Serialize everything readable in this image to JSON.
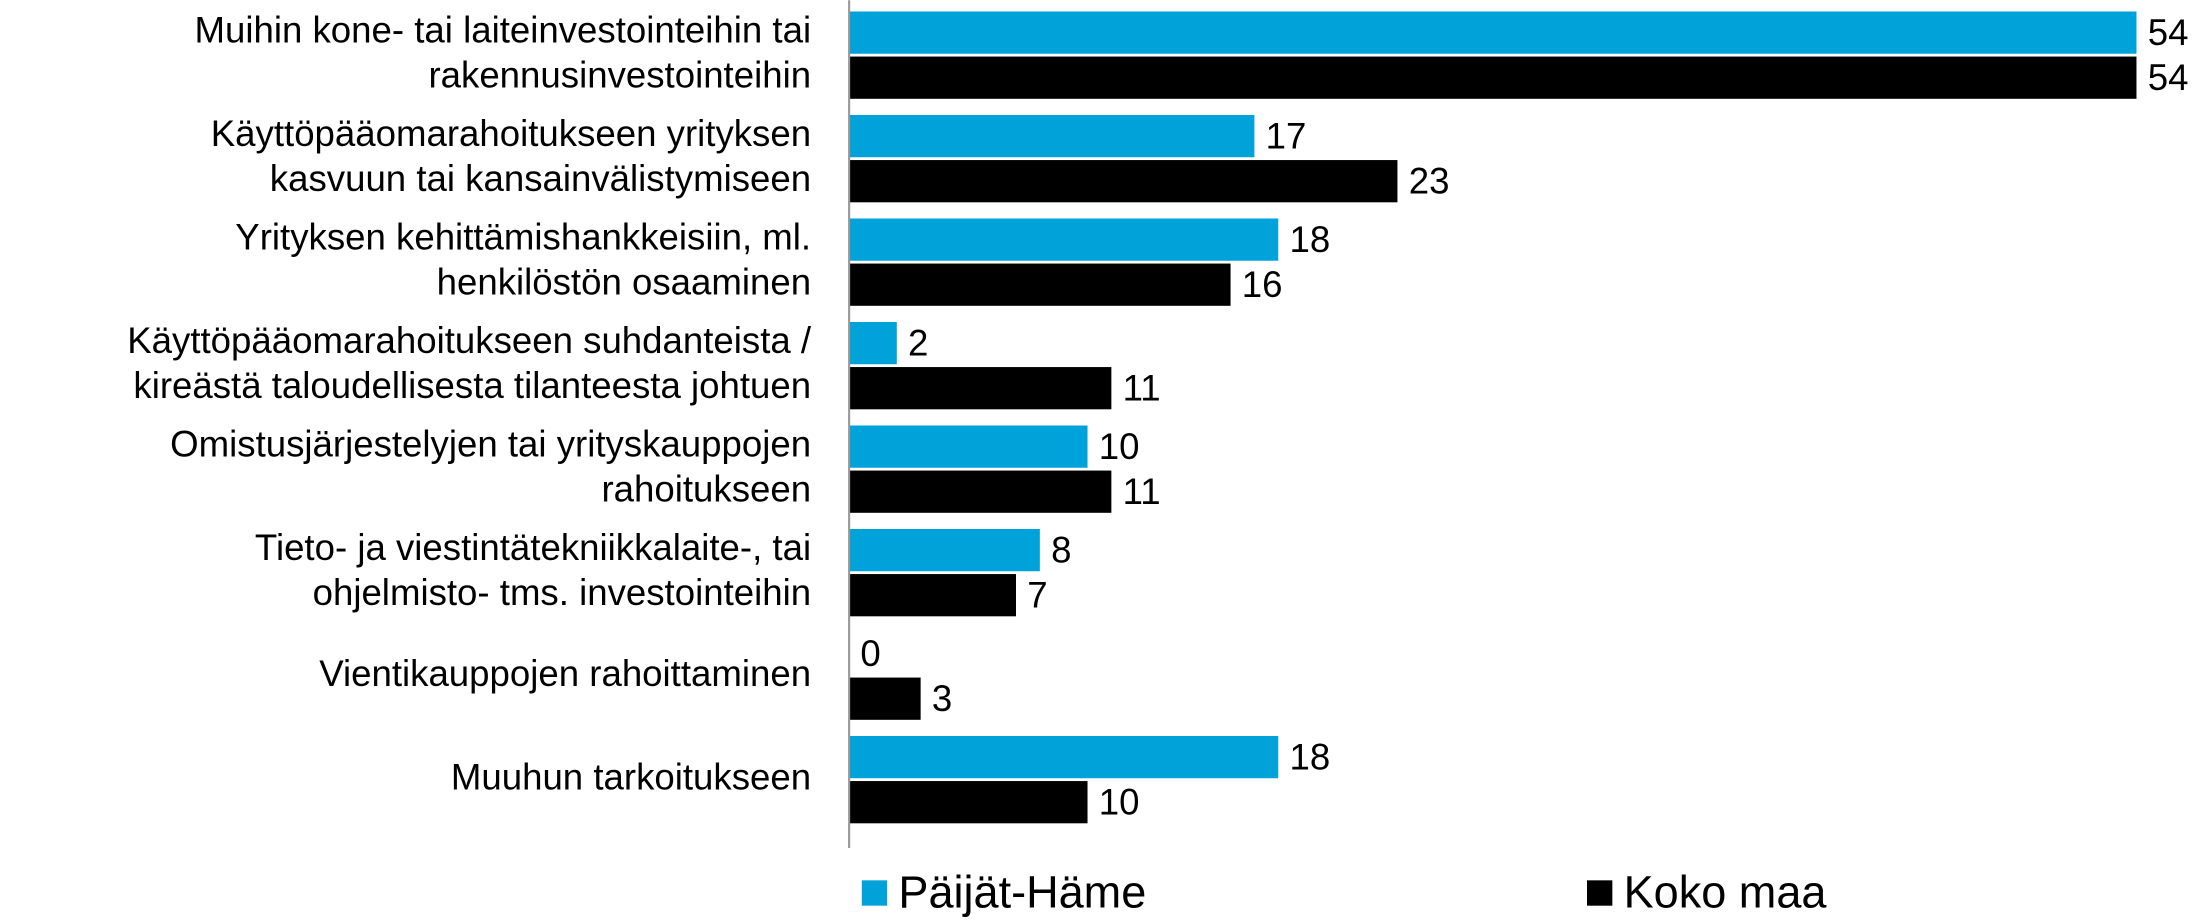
{
  "chart_data": {
    "type": "bar",
    "orientation": "horizontal",
    "categories": [
      [
        "Muihin kone- tai laiteinvestointeihin tai",
        "rakennusinvestointeihin"
      ],
      [
        "Käyttöpääomarahoitukseen yrityksen",
        "kasvuun tai kansainvälistymiseen"
      ],
      [
        "Yrityksen kehittämishankkeisiin, ml.",
        "henkilöstön osaaminen"
      ],
      [
        "Käyttöpääomarahoitukseen suhdanteista /",
        "kireästä taloudellisesta tilanteesta johtuen"
      ],
      [
        "Omistusjärjestelyjen tai yrityskauppojen",
        "rahoitukseen"
      ],
      [
        "Tieto- ja viestintätekniikkalaite-, tai",
        "ohjelmisto- tms. investointeihin"
      ],
      [
        "Vientikauppojen rahoittaminen"
      ],
      [
        "Muuhun tarkoitukseen"
      ]
    ],
    "series": [
      {
        "name": "Päijät-Häme",
        "color": "#00a2da",
        "values": [
          54,
          17,
          18,
          2,
          10,
          8,
          0,
          18
        ]
      },
      {
        "name": "Koko maa",
        "color": "#000000",
        "values": [
          54,
          23,
          16,
          11,
          11,
          7,
          3,
          10
        ]
      }
    ],
    "xlim": [
      0,
      57
    ],
    "legend": "bottom"
  }
}
